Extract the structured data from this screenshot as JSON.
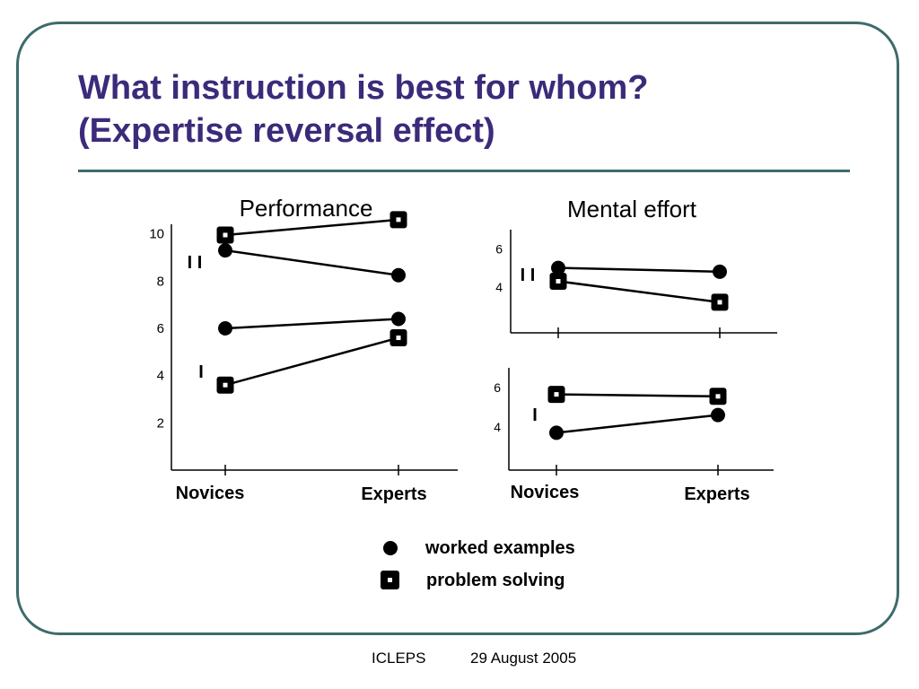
{
  "slide": {
    "title_line1": "What instruction is best for whom?",
    "title_line2": "(Expertise reversal effect)",
    "footer_left": "ICLEPS",
    "footer_right": "29 August 2005",
    "colors": {
      "title": "#3c2a7a",
      "frame": "#3e6b6b",
      "ink": "#000000"
    }
  },
  "legend": {
    "items": [
      {
        "label": "worked examples",
        "marker": "circle"
      },
      {
        "label": "problem solving",
        "marker": "square"
      }
    ]
  },
  "chart_data": [
    {
      "type": "line",
      "title": "Performance",
      "categories": [
        "Novices",
        "Experts"
      ],
      "ylim": [
        0,
        12
      ],
      "yticks": [
        2,
        4,
        6,
        8,
        10
      ],
      "grid": false,
      "groups": [
        {
          "label": "I I",
          "series": [
            {
              "marker": "square",
              "values": [
                9.95,
                10.6
              ]
            },
            {
              "marker": "circle",
              "values": [
                9.3,
                8.25
              ]
            }
          ]
        },
        {
          "label": "I",
          "series": [
            {
              "marker": "circle",
              "values": [
                6.0,
                6.4
              ]
            },
            {
              "marker": "square",
              "values": [
                3.6,
                5.6
              ]
            }
          ]
        }
      ]
    },
    {
      "type": "line",
      "title": "Mental effort",
      "panel": "top",
      "label": "I I",
      "categories": [
        "",
        ""
      ],
      "ylim": [
        1.6,
        7.0
      ],
      "yticks": [
        4,
        6
      ],
      "grid": false,
      "series": [
        {
          "marker": "circle",
          "values": [
            5.0,
            4.8
          ]
        },
        {
          "marker": "square",
          "values": [
            4.3,
            3.2
          ]
        }
      ]
    },
    {
      "type": "line",
      "panel": "bottom",
      "label": "I",
      "categories": [
        "Novices",
        "Experts"
      ],
      "ylim": [
        1.8,
        7.0
      ],
      "yticks": [
        4,
        6
      ],
      "grid": false,
      "series": [
        {
          "marker": "square",
          "values": [
            5.65,
            5.55
          ]
        },
        {
          "marker": "circle",
          "values": [
            3.7,
            4.6
          ]
        }
      ]
    }
  ]
}
